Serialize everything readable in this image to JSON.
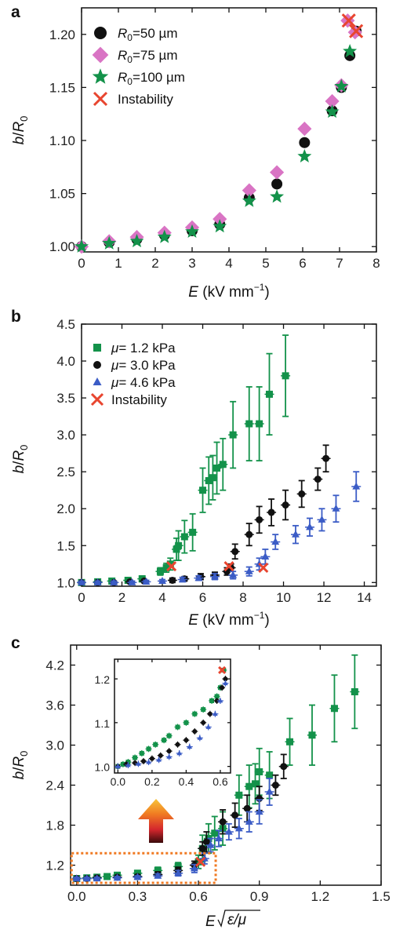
{
  "colors": {
    "black": "#111111",
    "pink": "#d974c4",
    "green": "#13924a",
    "red": "#e8452f",
    "blue": "#3b5cc6",
    "box": "#f07a22"
  },
  "chart_data": [
    {
      "panel": "a",
      "type": "scatter",
      "xlabel": "E (kV mm−1)",
      "ylabel": "b/R0",
      "xlim": [
        0,
        8
      ],
      "ylim": [
        0.995,
        1.225
      ],
      "xticks": [
        0,
        1,
        2,
        3,
        4,
        5,
        6,
        7,
        8
      ],
      "yticks": [
        1.0,
        1.05,
        1.1,
        1.15,
        1.2
      ],
      "ytick_labels": [
        "1.00",
        "1.05",
        "1.10",
        "1.15",
        "1.20"
      ],
      "legend": "top-left",
      "series": [
        {
          "name": "R0=50 µm",
          "marker": "circle",
          "color": "#111111",
          "x": [
            0,
            0.75,
            1.5,
            2.25,
            3.0,
            3.75,
            4.55,
            5.3,
            6.05,
            6.8,
            7.05,
            7.28,
            7.45
          ],
          "y": [
            1.0,
            1.004,
            1.007,
            1.011,
            1.015,
            1.021,
            1.046,
            1.059,
            1.098,
            1.128,
            1.15,
            1.18,
            1.203
          ]
        },
        {
          "name": "R0=75 µm",
          "marker": "diamond",
          "color": "#d974c4",
          "x": [
            0,
            0.75,
            1.5,
            2.25,
            3.0,
            3.75,
            4.55,
            5.3,
            6.05,
            6.8,
            7.05,
            7.22,
            7.42
          ],
          "y": [
            1.0,
            1.005,
            1.009,
            1.013,
            1.018,
            1.026,
            1.053,
            1.07,
            1.111,
            1.137,
            1.152,
            1.213,
            1.202
          ]
        },
        {
          "name": "R0=100 µm",
          "marker": "star",
          "color": "#13924a",
          "x": [
            0,
            0.75,
            1.5,
            2.25,
            3.0,
            3.75,
            4.55,
            5.3,
            6.05,
            6.8,
            7.05,
            7.28
          ],
          "y": [
            1.0,
            1.003,
            1.005,
            1.009,
            1.014,
            1.019,
            1.043,
            1.047,
            1.085,
            1.127,
            1.151,
            1.184
          ]
        },
        {
          "name": "Instability",
          "marker": "x",
          "color": "#e8452f",
          "x": [
            7.25,
            7.45
          ],
          "y": [
            1.213,
            1.203
          ]
        }
      ]
    },
    {
      "panel": "b",
      "type": "scatter",
      "xlabel": "E (kV mm−1)",
      "ylabel": "b/R0",
      "xlim": [
        0,
        14.6
      ],
      "ylim": [
        0.95,
        4.5
      ],
      "xticks": [
        0,
        2,
        4,
        6,
        8,
        10,
        12,
        14
      ],
      "yticks": [
        1.0,
        1.5,
        2.0,
        2.5,
        3.0,
        3.5,
        4.0,
        4.5
      ],
      "ytick_labels": [
        "1.0",
        "1.5",
        "2.0",
        "2.5",
        "3.0",
        "3.5",
        "4.0",
        "4.5"
      ],
      "legend": "top-left",
      "series": [
        {
          "name": "μ= 1.2 kPa",
          "marker": "square",
          "color": "#13924a",
          "x": [
            0,
            0.8,
            1.5,
            2.3,
            3.0,
            3.9,
            4.2,
            4.4,
            4.7,
            4.8,
            5.1,
            5.5,
            6.0,
            6.3,
            6.5,
            6.7,
            7.0,
            7.5,
            8.3,
            8.8,
            9.3,
            10.1
          ],
          "y": [
            1.0,
            1.01,
            1.02,
            1.03,
            1.05,
            1.15,
            1.2,
            1.25,
            1.45,
            1.5,
            1.62,
            1.68,
            2.25,
            2.38,
            2.42,
            2.55,
            2.6,
            3.0,
            3.15,
            3.15,
            3.55,
            3.8
          ],
          "yerr": [
            0.02,
            0.02,
            0.02,
            0.03,
            0.04,
            0.05,
            0.06,
            0.08,
            0.15,
            0.2,
            0.22,
            0.25,
            0.3,
            0.32,
            0.3,
            0.35,
            0.35,
            0.45,
            0.5,
            0.5,
            0.55,
            0.55
          ]
        },
        {
          "name": "μ= 3.0 kPa",
          "marker": "circle",
          "color": "#111111",
          "x": [
            0,
            0.8,
            1.6,
            2.4,
            3.1,
            4.5,
            5.1,
            5.9,
            6.6,
            7.2,
            7.4,
            7.6,
            8.3,
            8.8,
            9.4,
            10.1,
            10.9,
            11.7,
            12.1
          ],
          "y": [
            1.0,
            1.0,
            1.0,
            1.01,
            1.02,
            1.03,
            1.05,
            1.08,
            1.1,
            1.15,
            1.2,
            1.42,
            1.65,
            1.85,
            1.95,
            2.05,
            2.2,
            2.4,
            2.68
          ],
          "yerr": [
            0.02,
            0.02,
            0.02,
            0.02,
            0.02,
            0.03,
            0.03,
            0.04,
            0.04,
            0.05,
            0.05,
            0.1,
            0.15,
            0.18,
            0.18,
            0.2,
            0.18,
            0.15,
            0.18
          ]
        },
        {
          "name": "μ= 4.6 kPa",
          "marker": "triangle",
          "color": "#3b5cc6",
          "x": [
            0,
            0.8,
            1.6,
            2.5,
            3.2,
            4.0,
            5.0,
            5.8,
            6.6,
            7.5,
            8.3,
            8.8,
            9.1,
            9.6,
            10.6,
            11.3,
            11.9,
            12.6,
            13.6
          ],
          "y": [
            1.0,
            1.0,
            1.0,
            1.0,
            1.01,
            1.02,
            1.04,
            1.06,
            1.08,
            1.1,
            1.15,
            1.25,
            1.35,
            1.55,
            1.65,
            1.75,
            1.85,
            2.0,
            2.3
          ],
          "yerr": [
            0.02,
            0.02,
            0.02,
            0.02,
            0.02,
            0.02,
            0.03,
            0.03,
            0.04,
            0.05,
            0.06,
            0.08,
            0.1,
            0.1,
            0.12,
            0.12,
            0.15,
            0.18,
            0.2
          ]
        },
        {
          "name": "Instability",
          "marker": "x",
          "color": "#e8452f",
          "x": [
            4.45,
            7.3,
            9.0
          ],
          "y": [
            1.22,
            1.22,
            1.2
          ]
        }
      ]
    },
    {
      "panel": "c",
      "type": "scatter",
      "xlabel": "E √(ε/μ)",
      "ylabel": "b/R0",
      "xlim": [
        -0.03,
        1.5
      ],
      "ylim": [
        0.9,
        4.5
      ],
      "xticks": [
        0.0,
        0.3,
        0.6,
        0.9,
        1.2,
        1.5
      ],
      "xtick_labels": [
        "0.0",
        "0.3",
        "0.6",
        "0.9",
        "1.2",
        "1.5"
      ],
      "yticks": [
        1.2,
        1.8,
        2.4,
        3.0,
        3.6,
        4.2
      ],
      "ytick_labels": [
        "1.2",
        "1.8",
        "2.4",
        "3.0",
        "3.6",
        "4.2"
      ],
      "series": [
        {
          "name": "μ= 1.2 kPa",
          "marker": "square",
          "color": "#13924a",
          "x": [
            0,
            0.05,
            0.1,
            0.15,
            0.2,
            0.3,
            0.4,
            0.5,
            0.6,
            0.62,
            0.65,
            0.68,
            0.72,
            0.8,
            0.85,
            0.88,
            0.9,
            0.95,
            1.05,
            1.16,
            1.27,
            1.37
          ],
          "y": [
            1.0,
            1.01,
            1.02,
            1.03,
            1.05,
            1.08,
            1.12,
            1.18,
            1.25,
            1.45,
            1.6,
            1.68,
            1.75,
            2.25,
            2.38,
            2.42,
            2.6,
            2.55,
            3.05,
            3.15,
            3.55,
            3.8
          ],
          "yerr": [
            0.02,
            0.02,
            0.02,
            0.03,
            0.03,
            0.04,
            0.05,
            0.06,
            0.1,
            0.2,
            0.22,
            0.25,
            0.25,
            0.3,
            0.32,
            0.3,
            0.35,
            0.35,
            0.35,
            0.45,
            0.5,
            0.55
          ]
        },
        {
          "name": "μ= 3.0 kPa",
          "marker": "circle",
          "color": "#111111",
          "x": [
            0,
            0.05,
            0.1,
            0.2,
            0.3,
            0.4,
            0.5,
            0.58,
            0.62,
            0.64,
            0.72,
            0.78,
            0.84,
            0.9,
            0.98,
            1.02
          ],
          "y": [
            1.0,
            1.0,
            1.01,
            1.02,
            1.03,
            1.06,
            1.12,
            1.2,
            1.45,
            1.55,
            1.85,
            1.95,
            2.05,
            2.2,
            2.4,
            2.68
          ],
          "yerr": [
            0.02,
            0.02,
            0.02,
            0.02,
            0.03,
            0.04,
            0.05,
            0.06,
            0.1,
            0.15,
            0.18,
            0.18,
            0.2,
            0.18,
            0.15,
            0.18
          ]
        },
        {
          "name": "μ= 4.6 kPa",
          "marker": "triangle",
          "color": "#3b5cc6",
          "x": [
            0,
            0.05,
            0.1,
            0.2,
            0.3,
            0.4,
            0.5,
            0.58,
            0.63,
            0.66,
            0.7,
            0.75,
            0.8,
            0.85,
            0.9,
            0.95
          ],
          "y": [
            1.0,
            1.0,
            1.0,
            1.01,
            1.02,
            1.04,
            1.08,
            1.15,
            1.3,
            1.5,
            1.6,
            1.7,
            1.75,
            1.85,
            2.0,
            2.3
          ],
          "yerr": [
            0.02,
            0.02,
            0.02,
            0.02,
            0.02,
            0.03,
            0.04,
            0.06,
            0.08,
            0.1,
            0.12,
            0.12,
            0.15,
            0.15,
            0.18,
            0.2
          ]
        },
        {
          "name": "Instability",
          "marker": "x",
          "color": "#e8452f",
          "x": [
            0.61
          ],
          "y": [
            1.25
          ]
        }
      ],
      "inset": {
        "xlim": [
          -0.02,
          0.66
        ],
        "ylim": [
          0.985,
          1.245
        ],
        "xticks": [
          0.0,
          0.2,
          0.4,
          0.6
        ],
        "xtick_labels": [
          "0.0",
          "0.2",
          "0.4",
          "0.6"
        ],
        "yticks": [
          1.0,
          1.1,
          1.2
        ],
        "ytick_labels": [
          "1.0",
          "1.1",
          "1.2"
        ],
        "series": [
          {
            "marker": "square",
            "color": "#13924a",
            "x": [
              0.0,
              0.03,
              0.06,
              0.1,
              0.14,
              0.18,
              0.22,
              0.27,
              0.3,
              0.35,
              0.4,
              0.45,
              0.5,
              0.55,
              0.58,
              0.6,
              0.62
            ],
            "y": [
              1.0,
              1.005,
              1.01,
              1.02,
              1.03,
              1.04,
              1.05,
              1.06,
              1.07,
              1.09,
              1.1,
              1.12,
              1.13,
              1.15,
              1.16,
              1.18,
              1.22
            ]
          },
          {
            "marker": "circle",
            "color": "#111111",
            "x": [
              0.0,
              0.05,
              0.1,
              0.15,
              0.2,
              0.25,
              0.3,
              0.35,
              0.4,
              0.45,
              0.5,
              0.54,
              0.58,
              0.61,
              0.63
            ],
            "y": [
              1.0,
              1.005,
              1.008,
              1.012,
              1.018,
              1.025,
              1.035,
              1.05,
              1.06,
              1.08,
              1.1,
              1.12,
              1.15,
              1.18,
              1.2
            ]
          },
          {
            "marker": "triangle",
            "color": "#3b5cc6",
            "x": [
              0.0,
              0.06,
              0.12,
              0.18,
              0.24,
              0.3,
              0.36,
              0.42,
              0.48,
              0.53,
              0.57,
              0.6,
              0.63
            ],
            "y": [
              1.0,
              1.003,
              1.006,
              1.01,
              1.015,
              1.022,
              1.03,
              1.045,
              1.065,
              1.09,
              1.12,
              1.15,
              1.19
            ]
          },
          {
            "marker": "x",
            "color": "#e8452f",
            "x": [
              0.61
            ],
            "y": [
              1.22
            ]
          }
        ]
      }
    }
  ]
}
